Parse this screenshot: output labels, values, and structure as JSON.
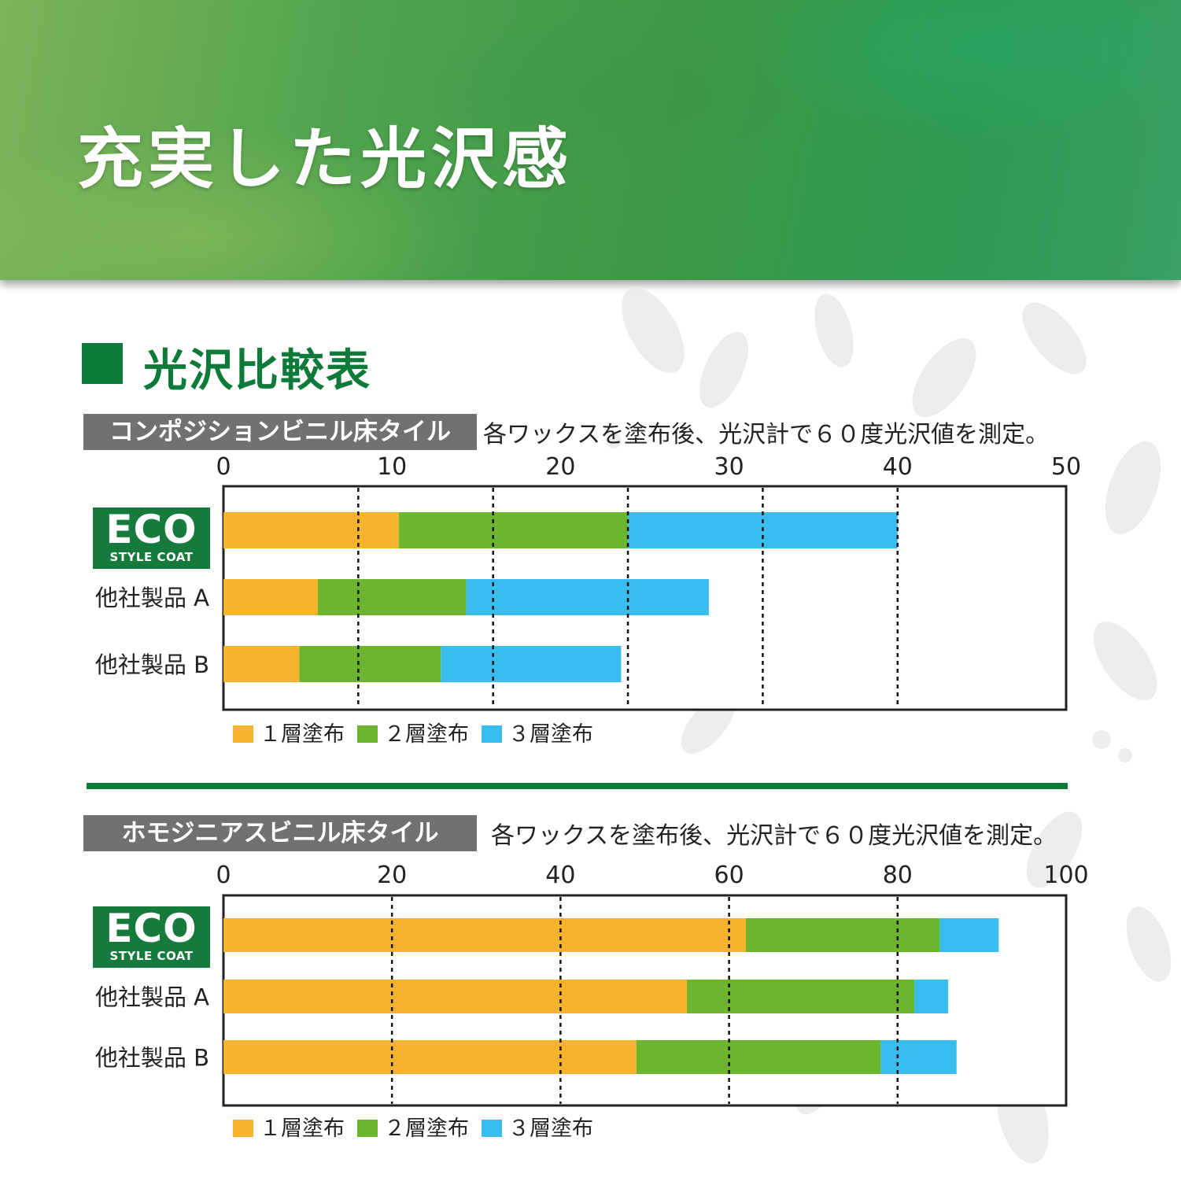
{
  "banner": {
    "title": "充実した光沢感"
  },
  "section": {
    "title": "光沢比較表"
  },
  "charts": [
    {
      "category_label": "コンポジションビニル床タイル",
      "note": "各ワックスを塗布後、光沢計で６０度光沢値を測定。"
    },
    {
      "category_label": "ホモジニアスビニル床タイル",
      "note": "各ワックスを塗布後、光沢計で６０度光沢値を測定。"
    }
  ],
  "logo": {
    "text": "ECO",
    "subtext": "STYLE COAT"
  },
  "colors": {
    "layer1": "#f6b32b",
    "layer2": "#6db52e",
    "layer3": "#38bdee",
    "brand_green": "#0d7a3a"
  },
  "chart_data": [
    {
      "type": "bar",
      "orientation": "horizontal",
      "stacked": true,
      "title": "コンポジションビニル床タイル",
      "categories": [
        "ECO STYLE COAT",
        "他社製品 A",
        "他社製品 B"
      ],
      "x_ticks": [
        0,
        10,
        20,
        30,
        40,
        50
      ],
      "xlim": [
        0,
        50
      ],
      "gridlines": [
        8,
        16,
        24,
        32,
        40
      ],
      "legend": "bottom",
      "series": [
        {
          "name": "１層塗布",
          "values": [
            10.4,
            5.6,
            4.5
          ]
        },
        {
          "name": "２層塗布",
          "values": [
            13.6,
            8.8,
            8.4
          ]
        },
        {
          "name": "３層塗布",
          "values": [
            16.0,
            14.4,
            10.7
          ]
        }
      ]
    },
    {
      "type": "bar",
      "orientation": "horizontal",
      "stacked": true,
      "title": "ホモジニアスビニル床タイル",
      "categories": [
        "ECO STYLE COAT",
        "他社製品 A",
        "他社製品 B"
      ],
      "x_ticks": [
        0,
        20,
        40,
        60,
        80,
        100
      ],
      "xlim": [
        0,
        100
      ],
      "gridlines": [
        20,
        40,
        60,
        80
      ],
      "legend": "bottom",
      "series": [
        {
          "name": "１層塗布",
          "values": [
            62,
            55,
            49
          ]
        },
        {
          "name": "２層塗布",
          "values": [
            23,
            27,
            29
          ]
        },
        {
          "name": "３層塗布",
          "values": [
            7,
            4,
            9
          ]
        }
      ]
    }
  ]
}
